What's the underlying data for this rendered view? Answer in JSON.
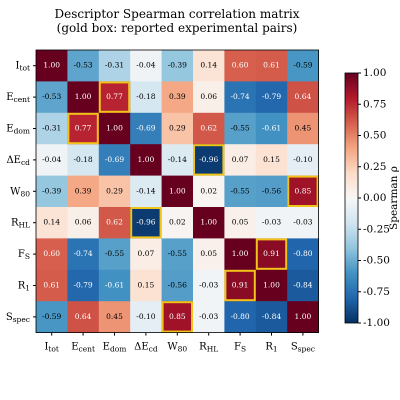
{
  "chart_data": {
    "type": "heatmap",
    "title": "Descriptor Spearman correlation matrix",
    "subtitle": "(gold box: reported experimental pairs)",
    "categories": [
      "I_tot",
      "E_cent",
      "E_dom",
      "ΔE_cd",
      "W_80",
      "R_HL",
      "F_S",
      "R_1",
      "S_spec"
    ],
    "values": [
      [
        1.0,
        -0.53,
        -0.31,
        -0.04,
        -0.39,
        0.14,
        0.6,
        0.61,
        -0.59
      ],
      [
        -0.53,
        1.0,
        0.77,
        -0.18,
        0.39,
        0.06,
        -0.74,
        -0.79,
        0.64
      ],
      [
        -0.31,
        0.77,
        1.0,
        -0.69,
        0.29,
        0.62,
        -0.55,
        -0.61,
        0.45
      ],
      [
        -0.04,
        -0.18,
        -0.69,
        1.0,
        -0.14,
        -0.96,
        0.07,
        0.15,
        -0.1
      ],
      [
        -0.39,
        0.39,
        0.29,
        -0.14,
        1.0,
        0.02,
        -0.55,
        -0.56,
        0.85
      ],
      [
        0.14,
        0.06,
        0.62,
        -0.96,
        0.02,
        1.0,
        0.05,
        -0.03,
        -0.03
      ],
      [
        0.6,
        -0.74,
        -0.55,
        0.07,
        -0.55,
        0.05,
        1.0,
        0.91,
        -0.8
      ],
      [
        0.61,
        -0.79,
        -0.61,
        0.15,
        -0.56,
        -0.03,
        0.91,
        1.0,
        -0.84
      ],
      [
        -0.59,
        0.64,
        0.45,
        -0.1,
        0.85,
        -0.03,
        -0.8,
        -0.84,
        1.0
      ]
    ],
    "value_labels": [
      [
        "1.00",
        "-0.53",
        "-0.31",
        "-0.04",
        "-0.39",
        "0.14",
        "0.60",
        "0.61",
        "-0.59"
      ],
      [
        "-0.53",
        "1.00",
        "0.77",
        "-0.18",
        "0.39",
        "0.06",
        "-0.74",
        "-0.79",
        "0.64"
      ],
      [
        "-0.31",
        "0.77",
        "1.00",
        "-0.69",
        "0.29",
        "0.62",
        "-0.55",
        "-0.61",
        "0.45"
      ],
      [
        "-0.04",
        "-0.18",
        "-0.69",
        "1.00",
        "-0.14",
        "-0.96",
        "0.07",
        "0.15",
        "-0.10"
      ],
      [
        "-0.39",
        "0.39",
        "0.29",
        "-0.14",
        "1.00",
        "0.02",
        "-0.55",
        "-0.56",
        "0.85"
      ],
      [
        "0.14",
        "0.06",
        "0.62",
        "-0.96",
        "0.02",
        "1.00",
        "0.05",
        "-0.03",
        "-0.03"
      ],
      [
        "0.60",
        "-0.74",
        "-0.55",
        "0.07",
        "-0.55",
        "0.05",
        "1.00",
        "0.91",
        "-0.80"
      ],
      [
        "0.61",
        "-0.79",
        "-0.61",
        "0.15",
        "-0.56",
        "-0.03",
        "0.91",
        "1.00",
        "-0.84"
      ],
      [
        "-0.59",
        "0.64",
        "0.45",
        "-0.10",
        "0.85",
        "-0.03",
        "-0.80",
        "-0.84",
        "1.00"
      ]
    ],
    "highlight": [
      [
        1,
        2
      ],
      [
        2,
        1
      ],
      [
        3,
        5
      ],
      [
        5,
        3
      ],
      [
        4,
        8
      ],
      [
        8,
        4
      ],
      [
        6,
        7
      ],
      [
        7,
        6
      ]
    ],
    "highlight_color": "#f0c419",
    "colorbar_label": "Spearman ρ",
    "colormap": [
      "#053061",
      "#2166ac",
      "#4393c3",
      "#92c5de",
      "#d1e5f0",
      "#f7f7f7",
      "#fddbc7",
      "#f4a582",
      "#d6604d",
      "#b2182b",
      "#67001f"
    ],
    "ylim": [
      -1,
      1
    ],
    "yticks": [
      {
        "value": -1,
        "label": "-1.00"
      },
      {
        "value": -0.75,
        "label": "-0.75"
      },
      {
        "value": -0.5,
        "label": "-0.50"
      },
      {
        "value": -0.25,
        "label": "-0.25"
      },
      {
        "value": 0,
        "label": "0.00"
      },
      {
        "value": 0.25,
        "label": "0.25"
      },
      {
        "value": 0.5,
        "label": "0.50"
      },
      {
        "value": 0.75,
        "label": "0.75"
      },
      {
        "value": 1,
        "label": "1.00"
      }
    ]
  }
}
